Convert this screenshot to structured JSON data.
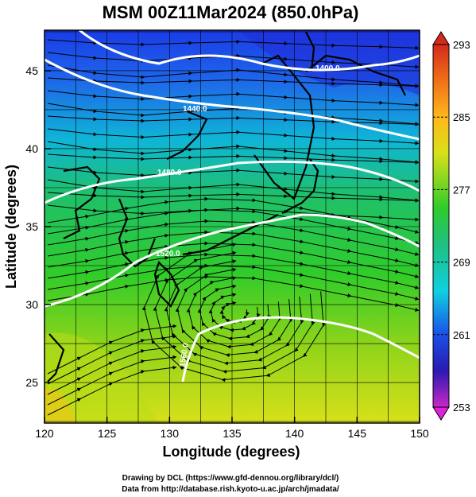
{
  "title": "MSM 00Z11Mar2024 (850.0hPa)",
  "x_axis": {
    "label": "Longitude (degrees)",
    "range": [
      120,
      150
    ],
    "ticks": [
      "120",
      "125",
      "130",
      "135",
      "140",
      "145",
      "150"
    ]
  },
  "y_axis": {
    "label": "Latitude  (degrees)",
    "range": [
      22.4,
      47.6
    ],
    "ticks": [
      "25",
      "30",
      "35",
      "40",
      "45"
    ]
  },
  "colorbar": {
    "range": [
      253,
      293
    ],
    "ticks": [
      "293",
      "285",
      "277",
      "269",
      "261",
      "253"
    ]
  },
  "contour_labels": [
    "1400.0",
    "1440.0",
    "1480.0",
    "1520.0",
    "1560.0"
  ],
  "credits": {
    "line1": "Drawing by DCL (https://www.gfd-dennou.org/library/dcl/)",
    "line2": "Data from http://database.rish.kyoto-u.ac.jp/arch/jmadata/"
  }
}
